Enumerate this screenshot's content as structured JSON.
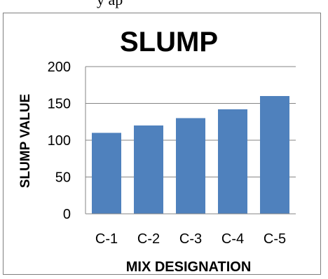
{
  "header_fragment": "y                                                    ap",
  "chart_data": {
    "type": "bar",
    "title": "SLUMP",
    "xlabel": "MIX DESIGNATION",
    "ylabel": "SLUMP VALUE",
    "categories": [
      "C-1",
      "C-2",
      "C-3",
      "C-4",
      "C-5"
    ],
    "values": [
      110,
      120,
      130,
      142,
      160
    ],
    "ylim": [
      0,
      200
    ],
    "yticks": [
      "0",
      "50",
      "100",
      "150",
      "200"
    ],
    "grid": true,
    "legend": "none",
    "bar_color": "#4f81bd"
  }
}
